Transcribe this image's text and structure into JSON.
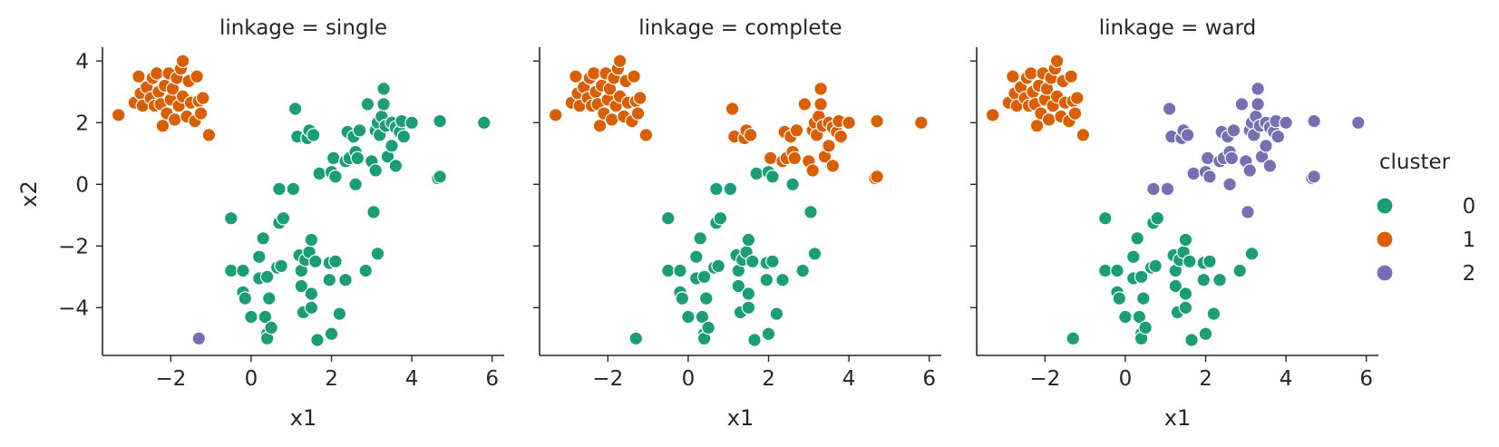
{
  "chart_data": {
    "type": "scatter",
    "xlabel": "x1",
    "ylabel": "x2",
    "xlim": [
      -3.7,
      6.3
    ],
    "ylim": [
      -5.55,
      4.45
    ],
    "xticks": [
      -2,
      0,
      2,
      4,
      6
    ],
    "yticks": [
      -4,
      -2,
      0,
      2,
      4
    ],
    "tick_labels": {
      "x": [
        "−2",
        "0",
        "2",
        "4",
        "6"
      ],
      "y": [
        "−4",
        "−2",
        "0",
        "2",
        "4"
      ]
    },
    "grid": false,
    "legend": {
      "title": "cluster",
      "position": "right",
      "entries": [
        "0",
        "1",
        "2"
      ]
    },
    "colors": {
      "0": "#1b9e77",
      "1": "#d95f02",
      "2": "#7570b3"
    },
    "panels": [
      {
        "title": "linkage = single",
        "membership": "single"
      },
      {
        "title": "linkage = complete",
        "membership": "complete"
      },
      {
        "title": "linkage = ward",
        "membership": "ward"
      }
    ],
    "points": [
      [
        -3.3,
        2.25,
        1,
        1,
        1
      ],
      [
        -2.9,
        2.65,
        1,
        1,
        1
      ],
      [
        -2.8,
        3.5,
        1,
        1,
        1
      ],
      [
        -2.75,
        2.95,
        1,
        1,
        1
      ],
      [
        -2.7,
        2.55,
        1,
        1,
        1
      ],
      [
        -2.6,
        3.15,
        1,
        1,
        1
      ],
      [
        -2.5,
        2.8,
        1,
        1,
        1
      ],
      [
        -2.45,
        3.45,
        1,
        1,
        1
      ],
      [
        -2.4,
        2.55,
        1,
        1,
        1
      ],
      [
        -2.35,
        3.6,
        1,
        1,
        1
      ],
      [
        -2.3,
        3.0,
        1,
        1,
        1
      ],
      [
        -2.25,
        2.6,
        1,
        1,
        1
      ],
      [
        -2.2,
        1.9,
        1,
        1,
        1
      ],
      [
        -2.15,
        3.2,
        1,
        1,
        1
      ],
      [
        -2.1,
        2.3,
        1,
        1,
        1
      ],
      [
        -2.05,
        3.6,
        1,
        1,
        1
      ],
      [
        -2.0,
        2.75,
        1,
        1,
        1
      ],
      [
        -1.95,
        3.1,
        1,
        1,
        1
      ],
      [
        -1.9,
        2.1,
        1,
        1,
        1
      ],
      [
        -1.85,
        3.45,
        1,
        1,
        1
      ],
      [
        -1.8,
        2.55,
        1,
        1,
        1
      ],
      [
        -1.75,
        3.75,
        1,
        1,
        1
      ],
      [
        -1.7,
        4.0,
        1,
        1,
        1
      ],
      [
        -1.7,
        2.85,
        1,
        1,
        1
      ],
      [
        -1.6,
        2.2,
        1,
        1,
        1
      ],
      [
        -1.55,
        3.35,
        1,
        1,
        1
      ],
      [
        -1.5,
        2.65,
        1,
        1,
        1
      ],
      [
        -1.4,
        2.05,
        1,
        1,
        1
      ],
      [
        -1.35,
        3.5,
        1,
        1,
        1
      ],
      [
        -1.3,
        2.7,
        1,
        1,
        1
      ],
      [
        -1.25,
        2.3,
        1,
        1,
        1
      ],
      [
        -1.2,
        2.8,
        1,
        1,
        1
      ],
      [
        -1.05,
        1.6,
        1,
        1,
        1
      ],
      [
        -1.3,
        -5.0,
        2,
        0,
        0
      ],
      [
        -0.5,
        -1.1,
        0,
        0,
        0
      ],
      [
        -0.5,
        -2.8,
        0,
        0,
        0
      ],
      [
        -0.2,
        -2.8,
        0,
        0,
        0
      ],
      [
        -0.2,
        -3.5,
        0,
        0,
        0
      ],
      [
        -0.15,
        -3.7,
        0,
        0,
        0
      ],
      [
        0.0,
        -4.3,
        0,
        0,
        0
      ],
      [
        0.2,
        -2.35,
        0,
        0,
        0
      ],
      [
        0.2,
        -3.05,
        0,
        0,
        0
      ],
      [
        0.3,
        -1.75,
        0,
        0,
        0
      ],
      [
        0.35,
        -4.3,
        0,
        0,
        0
      ],
      [
        0.4,
        -3.0,
        0,
        0,
        0
      ],
      [
        0.4,
        -4.85,
        0,
        0,
        0
      ],
      [
        0.4,
        -5.0,
        0,
        0,
        0
      ],
      [
        0.45,
        -3.7,
        0,
        0,
        0
      ],
      [
        0.5,
        -4.65,
        0,
        0,
        0
      ],
      [
        0.65,
        -2.7,
        0,
        0,
        0
      ],
      [
        0.7,
        -0.15,
        0,
        0,
        2
      ],
      [
        0.7,
        -1.25,
        0,
        0,
        0
      ],
      [
        0.75,
        -2.65,
        0,
        0,
        0
      ],
      [
        0.8,
        -1.1,
        0,
        0,
        0
      ],
      [
        1.05,
        -0.15,
        0,
        0,
        2
      ],
      [
        1.1,
        2.45,
        0,
        1,
        2
      ],
      [
        1.15,
        1.55,
        0,
        1,
        2
      ],
      [
        1.2,
        -2.3,
        0,
        0,
        0
      ],
      [
        1.25,
        -2.8,
        0,
        0,
        0
      ],
      [
        1.25,
        -3.3,
        0,
        0,
        0
      ],
      [
        1.3,
        -4.15,
        0,
        0,
        0
      ],
      [
        1.35,
        -2.45,
        0,
        0,
        0
      ],
      [
        1.4,
        1.5,
        0,
        1,
        2
      ],
      [
        1.45,
        -2.2,
        0,
        0,
        0
      ],
      [
        1.45,
        1.75,
        0,
        1,
        2
      ],
      [
        1.5,
        -1.8,
        0,
        0,
        0
      ],
      [
        1.5,
        -3.55,
        0,
        0,
        0
      ],
      [
        1.5,
        -4.0,
        0,
        0,
        0
      ],
      [
        1.55,
        1.6,
        0,
        1,
        2
      ],
      [
        1.6,
        -2.5,
        0,
        0,
        0
      ],
      [
        1.65,
        -5.05,
        0,
        0,
        0
      ],
      [
        1.7,
        0.35,
        0,
        0,
        2
      ],
      [
        1.95,
        -3.1,
        0,
        0,
        0
      ],
      [
        1.95,
        -2.55,
        0,
        0,
        0
      ],
      [
        2.0,
        -4.85,
        0,
        0,
        0
      ],
      [
        2.0,
        0.4,
        0,
        0,
        2
      ],
      [
        2.05,
        0.85,
        0,
        1,
        2
      ],
      [
        2.1,
        -2.5,
        0,
        0,
        0
      ],
      [
        2.1,
        0.25,
        0,
        0,
        2
      ],
      [
        2.2,
        -4.2,
        0,
        0,
        0
      ],
      [
        2.35,
        -3.1,
        0,
        0,
        0
      ],
      [
        2.35,
        0.75,
        0,
        1,
        2
      ],
      [
        2.4,
        1.7,
        0,
        1,
        2
      ],
      [
        2.45,
        0.85,
        0,
        1,
        2
      ],
      [
        2.55,
        1.55,
        0,
        1,
        2
      ],
      [
        2.6,
        1.05,
        0,
        1,
        2
      ],
      [
        2.6,
        0.0,
        0,
        0,
        2
      ],
      [
        2.65,
        0.85,
        0,
        1,
        2
      ],
      [
        2.7,
        1.75,
        0,
        1,
        2
      ],
      [
        2.85,
        -2.8,
        0,
        0,
        0
      ],
      [
        2.9,
        2.6,
        0,
        1,
        2
      ],
      [
        3.0,
        0.75,
        0,
        1,
        2
      ],
      [
        3.05,
        -0.9,
        0,
        0,
        2
      ],
      [
        3.1,
        0.45,
        0,
        1,
        2
      ],
      [
        3.15,
        -2.25,
        0,
        0,
        0
      ],
      [
        3.1,
        1.75,
        0,
        1,
        2
      ],
      [
        3.15,
        2.0,
        0,
        1,
        2
      ],
      [
        3.2,
        1.6,
        0,
        1,
        2
      ],
      [
        3.25,
        2.2,
        0,
        1,
        2
      ],
      [
        3.3,
        3.1,
        0,
        1,
        2
      ],
      [
        3.3,
        2.6,
        0,
        1,
        2
      ],
      [
        3.35,
        1.9,
        0,
        1,
        2
      ],
      [
        3.4,
        0.9,
        0,
        1,
        2
      ],
      [
        3.5,
        1.25,
        0,
        1,
        2
      ],
      [
        3.5,
        2.0,
        0,
        1,
        2
      ],
      [
        3.6,
        1.85,
        0,
        1,
        2
      ],
      [
        3.6,
        0.6,
        0,
        1,
        2
      ],
      [
        3.7,
        1.7,
        0,
        1,
        2
      ],
      [
        3.75,
        2.05,
        0,
        1,
        2
      ],
      [
        3.8,
        1.55,
        0,
        1,
        2
      ],
      [
        4.0,
        2.0,
        0,
        1,
        2
      ],
      [
        4.65,
        0.2,
        0,
        1,
        2
      ],
      [
        4.7,
        0.25,
        0,
        1,
        2
      ],
      [
        4.7,
        2.05,
        0,
        1,
        2
      ],
      [
        5.8,
        2.0,
        0,
        1,
        2
      ]
    ]
  }
}
